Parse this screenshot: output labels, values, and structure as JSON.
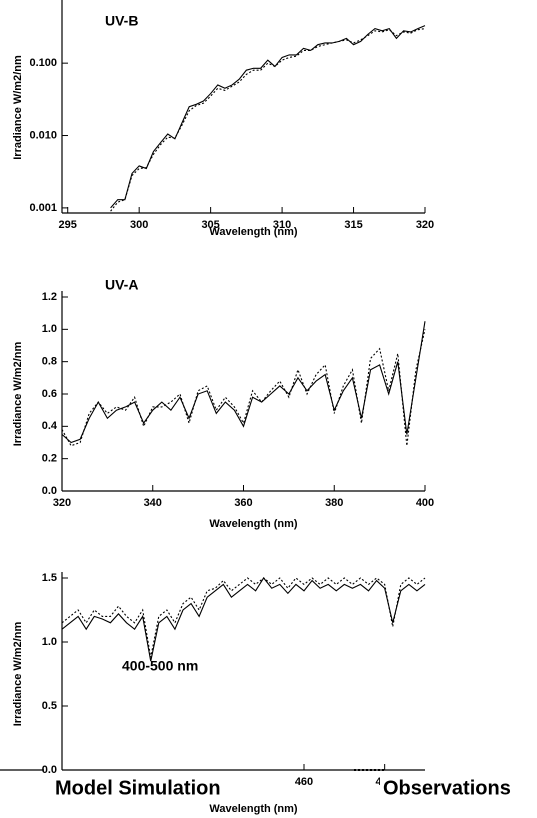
{
  "chart_data": [
    {
      "type": "line",
      "log_y": true,
      "annotation": "UV-B",
      "x_label": "Wavelength (nm)",
      "y_label": "Irradiance W/m2/nm",
      "xlim": [
        294.6,
        320
      ],
      "xticks": [
        295,
        300,
        305,
        310,
        315,
        320
      ],
      "ylim": [
        0.00085,
        0.7
      ],
      "yticks": [
        0.001,
        {
          "value": 0.01,
          "label": "0.010"
        },
        {
          "value": 0.1,
          "label": "0.100"
        }
      ],
      "x": [
        298,
        298.5,
        299,
        299.5,
        300,
        300.5,
        301,
        301.5,
        302,
        302.5,
        303,
        303.5,
        304,
        304.5,
        305,
        305.5,
        306,
        306.5,
        307,
        307.5,
        308,
        308.5,
        309,
        309.5,
        310,
        310.5,
        311,
        311.5,
        312,
        312.5,
        313,
        313.5,
        314,
        314.5,
        315,
        315.5,
        316,
        316.5,
        317,
        317.5,
        318,
        318.5,
        319,
        319.5,
        320
      ],
      "series": [
        {
          "color": "#000000",
          "line_style": "solid",
          "values": [
            0.001,
            0.0013,
            0.0013,
            0.003,
            0.0038,
            0.0035,
            0.006,
            0.008,
            0.0105,
            0.009,
            0.015,
            0.025,
            0.027,
            0.03,
            0.038,
            0.05,
            0.045,
            0.05,
            0.06,
            0.08,
            0.085,
            0.085,
            0.11,
            0.09,
            0.12,
            0.13,
            0.13,
            0.16,
            0.15,
            0.18,
            0.19,
            0.19,
            0.2,
            0.22,
            0.18,
            0.2,
            0.25,
            0.3,
            0.28,
            0.3,
            0.22,
            0.28,
            0.27,
            0.3,
            0.33
          ]
        },
        {
          "color": "#000000",
          "line_style": "dotted",
          "values": [
            0.0009,
            0.0012,
            0.0013,
            0.0028,
            0.0035,
            0.0036,
            0.0055,
            0.0075,
            0.0095,
            0.0092,
            0.014,
            0.022,
            0.026,
            0.028,
            0.035,
            0.045,
            0.042,
            0.048,
            0.055,
            0.07,
            0.08,
            0.08,
            0.1,
            0.09,
            0.11,
            0.12,
            0.125,
            0.15,
            0.15,
            0.17,
            0.18,
            0.19,
            0.2,
            0.21,
            0.19,
            0.21,
            0.24,
            0.28,
            0.27,
            0.29,
            0.24,
            0.27,
            0.26,
            0.29,
            0.3
          ]
        }
      ]
    },
    {
      "type": "line",
      "log_y": false,
      "annotation": "UV-A",
      "x_label": "Wavelength (nm)",
      "y_label": "Irradiance W/m2/nm",
      "xlim": [
        320,
        400
      ],
      "xticks": [
        320,
        340,
        360,
        380,
        400
      ],
      "ylim": [
        0,
        1.2
      ],
      "yticks": [
        {
          "value": 0,
          "label": "0.0"
        },
        0.2,
        0.4,
        0.6,
        0.8,
        {
          "value": 1,
          "label": "1.0"
        },
        1.2
      ],
      "x": [
        320,
        322,
        324,
        326,
        328,
        330,
        332,
        334,
        336,
        338,
        340,
        342,
        344,
        346,
        348,
        350,
        352,
        354,
        356,
        358,
        360,
        362,
        364,
        366,
        368,
        370,
        372,
        374,
        376,
        378,
        380,
        382,
        384,
        386,
        388,
        390,
        392,
        394,
        396,
        398,
        400
      ],
      "series": [
        {
          "color": "#000000",
          "line_style": "solid",
          "values": [
            0.35,
            0.3,
            0.32,
            0.45,
            0.55,
            0.45,
            0.5,
            0.52,
            0.55,
            0.42,
            0.5,
            0.55,
            0.5,
            0.58,
            0.45,
            0.6,
            0.62,
            0.48,
            0.55,
            0.5,
            0.4,
            0.58,
            0.55,
            0.6,
            0.65,
            0.6,
            0.7,
            0.62,
            0.68,
            0.72,
            0.5,
            0.62,
            0.7,
            0.45,
            0.75,
            0.78,
            0.6,
            0.8,
            0.35,
            0.7,
            1.05
          ]
        },
        {
          "color": "#000000",
          "line_style": "dotted",
          "values": [
            0.38,
            0.28,
            0.3,
            0.48,
            0.55,
            0.48,
            0.52,
            0.5,
            0.58,
            0.4,
            0.52,
            0.52,
            0.55,
            0.6,
            0.42,
            0.62,
            0.65,
            0.5,
            0.58,
            0.52,
            0.42,
            0.62,
            0.55,
            0.62,
            0.68,
            0.58,
            0.75,
            0.6,
            0.72,
            0.78,
            0.48,
            0.65,
            0.75,
            0.42,
            0.82,
            0.88,
            0.62,
            0.85,
            0.28,
            0.75,
            1.0
          ]
        }
      ]
    },
    {
      "type": "line",
      "log_y": false,
      "annotation": "400-500 nm",
      "x_label": "Wavelength (nm)",
      "y_label": "Irradiance W/m2/nm",
      "xlim": [
        400,
        490
      ],
      "xticks": [
        460,
        480
      ],
      "ylim": [
        0,
        1.5
      ],
      "yticks": [
        {
          "value": 0,
          "label": "0.0"
        },
        0.5,
        {
          "value": 1,
          "label": "1.0"
        },
        1.5
      ],
      "x": [
        400,
        402,
        404,
        406,
        408,
        410,
        412,
        414,
        416,
        418,
        420,
        422,
        424,
        426,
        428,
        430,
        432,
        434,
        436,
        438,
        440,
        442,
        444,
        446,
        448,
        450,
        452,
        454,
        456,
        458,
        460,
        462,
        464,
        466,
        468,
        470,
        472,
        474,
        476,
        478,
        480,
        482,
        484,
        486,
        488,
        490
      ],
      "series": [
        {
          "name": "Model Simulation",
          "color": "#000000",
          "line_style": "solid",
          "values": [
            1.1,
            1.15,
            1.2,
            1.1,
            1.2,
            1.18,
            1.15,
            1.22,
            1.15,
            1.1,
            1.2,
            0.85,
            1.15,
            1.2,
            1.1,
            1.25,
            1.3,
            1.2,
            1.35,
            1.4,
            1.45,
            1.35,
            1.4,
            1.45,
            1.4,
            1.5,
            1.42,
            1.45,
            1.38,
            1.45,
            1.4,
            1.48,
            1.42,
            1.45,
            1.4,
            1.45,
            1.42,
            1.45,
            1.4,
            1.48,
            1.42,
            1.15,
            1.4,
            1.45,
            1.4,
            1.45
          ]
        },
        {
          "name": "Observations",
          "color": "#000000",
          "line_style": "dotted",
          "values": [
            1.15,
            1.2,
            1.25,
            1.15,
            1.25,
            1.2,
            1.2,
            1.28,
            1.2,
            1.15,
            1.25,
            0.88,
            1.2,
            1.25,
            1.15,
            1.3,
            1.35,
            1.25,
            1.4,
            1.42,
            1.48,
            1.4,
            1.45,
            1.5,
            1.45,
            1.5,
            1.45,
            1.5,
            1.42,
            1.5,
            1.45,
            1.5,
            1.45,
            1.5,
            1.45,
            1.5,
            1.45,
            1.5,
            1.45,
            1.5,
            1.45,
            1.12,
            1.45,
            1.5,
            1.45,
            1.5
          ]
        }
      ]
    }
  ]
}
